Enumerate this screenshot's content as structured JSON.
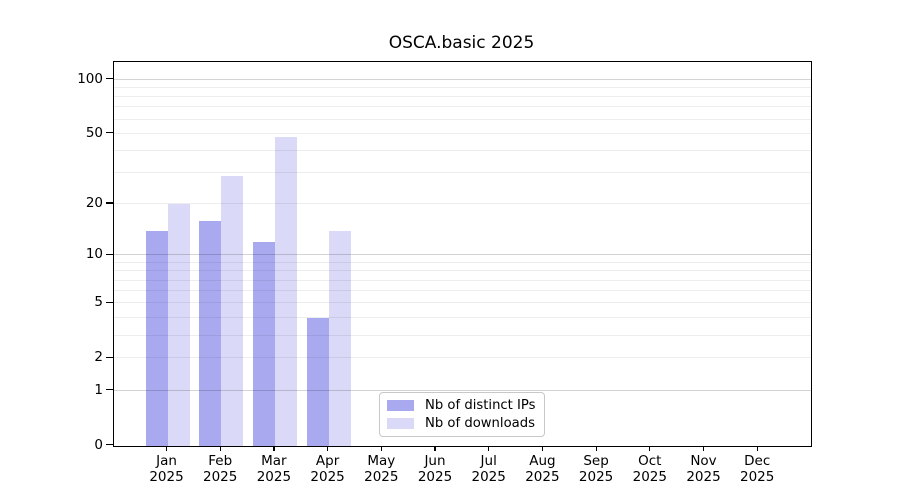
{
  "chart_data": {
    "type": "bar",
    "title": "OSCA.basic 2025",
    "year": "2025",
    "months": [
      "Jan",
      "Feb",
      "Mar",
      "Apr",
      "May",
      "Jun",
      "Jul",
      "Aug",
      "Sep",
      "Oct",
      "Nov",
      "Dec"
    ],
    "series": [
      {
        "name": "Nb of distinct IPs",
        "color": "#a9a9f0",
        "values": [
          14,
          16,
          12,
          4,
          null,
          null,
          null,
          null,
          null,
          null,
          null,
          null
        ]
      },
      {
        "name": "Nb of downloads",
        "color": "#dadaf8",
        "values": [
          20,
          29,
          48,
          14,
          null,
          null,
          null,
          null,
          null,
          null,
          null,
          null
        ]
      }
    ],
    "y_axis": {
      "scale": "log10(1+x)",
      "tick_values": [
        0,
        1,
        2,
        5,
        10,
        20,
        50,
        100
      ]
    },
    "x_axis": {
      "tick_label_format": "month + year, two lines"
    },
    "legend": {
      "location": "bottom-center"
    },
    "grid": {
      "horizontal": true,
      "minor_log_lines": true
    }
  },
  "colors": {
    "background": "#ffffff",
    "axis": "#000000",
    "text": "#000000",
    "major_grid": "#d4d4d4",
    "minor_grid": "#ededed",
    "legend_border": "#c8c8c8"
  }
}
